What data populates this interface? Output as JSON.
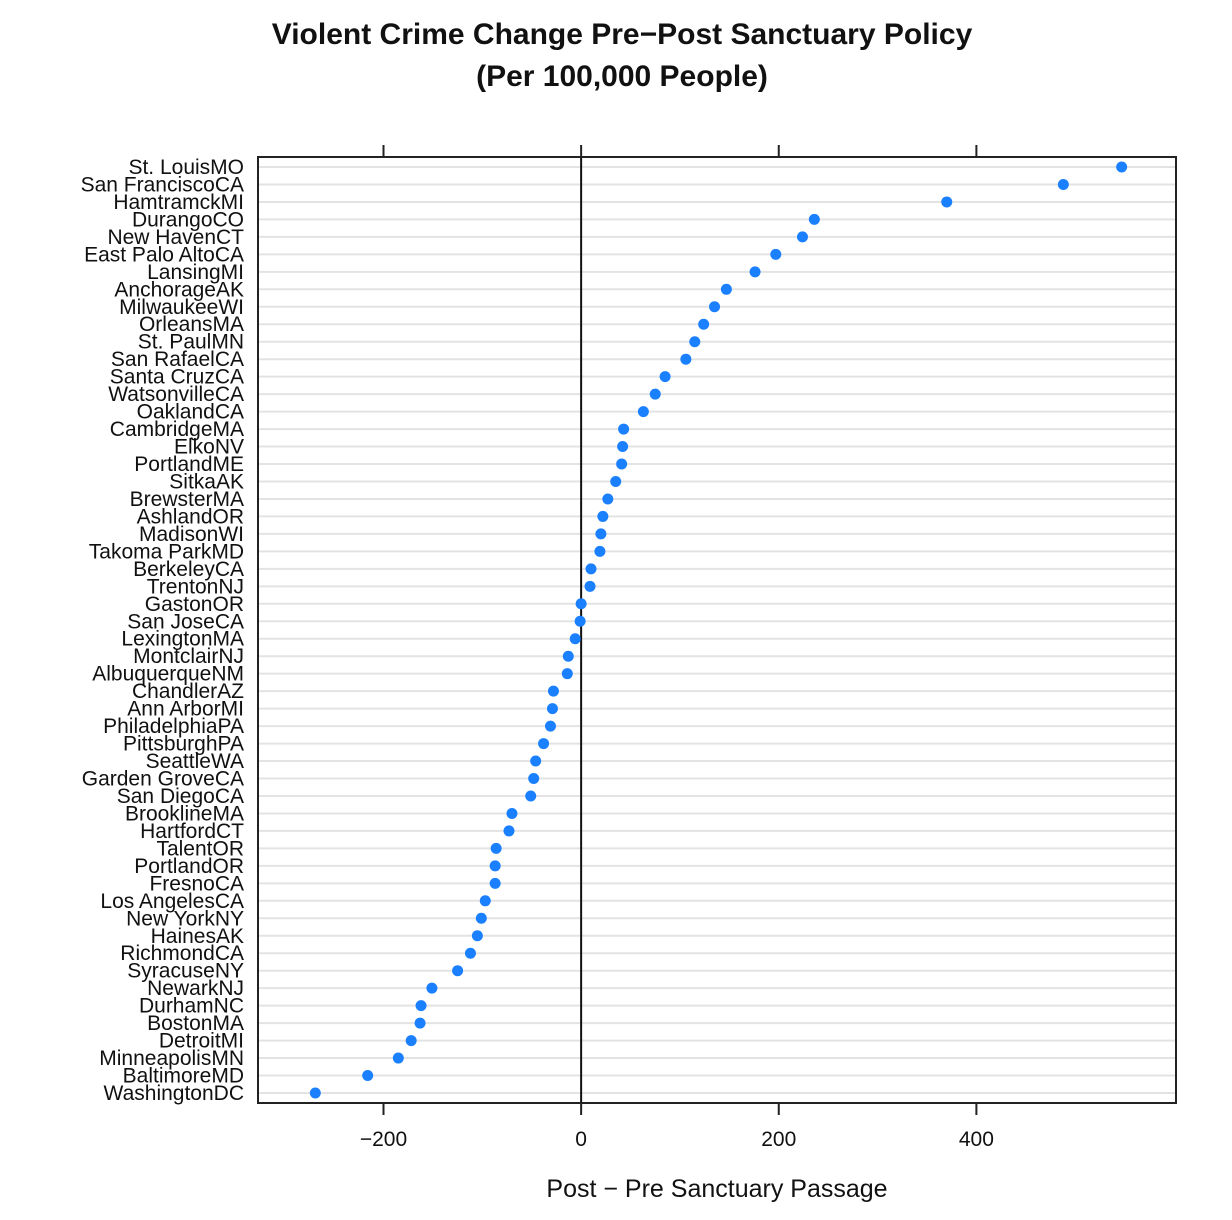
{
  "chart_data": {
    "type": "scatter",
    "title": "Violent Crime Change Pre−Post Sanctuary Policy",
    "subtitle": "(Per 100,000 People)",
    "xlabel": "Post − Pre Sanctuary Passage",
    "ylabel": "",
    "xlim": [
      -327,
      602
    ],
    "xticks": [
      -200,
      0,
      200,
      400
    ],
    "xtick_labels": [
      "−200",
      "0",
      "200",
      "400"
    ],
    "reference_line": 0,
    "grid": true,
    "point_color": "#1a80ff",
    "categories": [
      "St. LouisMO",
      "San FranciscoCA",
      "HamtramckMI",
      "DurangoCO",
      "New HavenCT",
      "East Palo AltoCA",
      "LansingMI",
      "AnchorageAK",
      "MilwaukeeWI",
      "OrleansMA",
      "St. PaulMN",
      "San RafaelCA",
      "Santa CruzCA",
      "WatsonvilleCA",
      "OaklandCA",
      "CambridgeMA",
      "ElkoNV",
      "PortlandME",
      "SitkaAK",
      "BrewsterMA",
      "AshlandOR",
      "MadisonWI",
      "Takoma ParkMD",
      "BerkeleyCA",
      "TrentonNJ",
      "GastonOR",
      "San JoseCA",
      "LexingtonMA",
      "MontclairNJ",
      "AlbuquerqueNM",
      "ChandlerAZ",
      "Ann ArborMI",
      "PhiladelphiaPA",
      "PittsburghPA",
      "SeattleWA",
      "Garden GroveCA",
      "San DiegoCA",
      "BrooklineMA",
      "HartfordCT",
      "TalentOR",
      "PortlandOR",
      "FresnoCA",
      "Los AngelesCA",
      "New YorkNY",
      "HainesAK",
      "RichmondCA",
      "SyracuseNY",
      "NewarkNJ",
      "DurhamNC",
      "BostonMA",
      "DetroitMI",
      "MinneapolisMN",
      "BaltimoreMD",
      "WashingtonDC"
    ],
    "values": [
      547,
      488,
      370,
      236,
      224,
      197,
      176,
      147,
      135,
      124,
      115,
      106,
      85,
      75,
      63,
      43,
      42,
      41,
      35,
      27,
      22,
      20,
      19,
      10,
      9,
      0,
      -1,
      -6,
      -13,
      -14,
      -28,
      -29,
      -31,
      -38,
      -46,
      -48,
      -51,
      -70,
      -73,
      -86,
      -87,
      -87,
      -97,
      -101,
      -105,
      -112,
      -125,
      -151,
      -162,
      -163,
      -172,
      -185,
      -216,
      -269
    ]
  }
}
